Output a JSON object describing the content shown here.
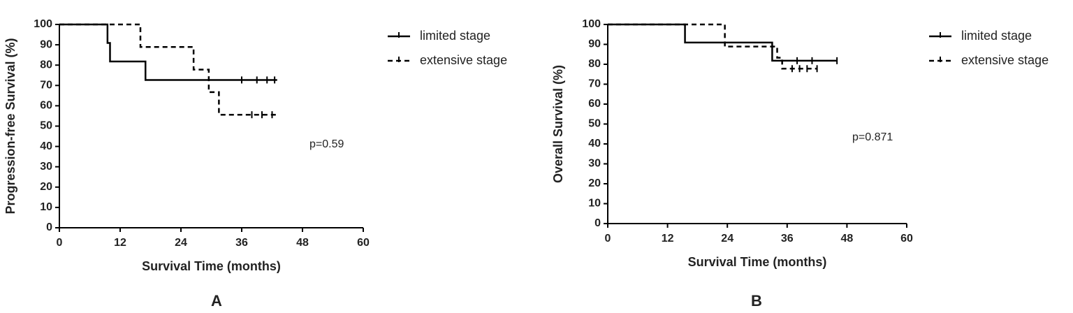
{
  "chart_data": [
    {
      "type": "step",
      "panel": "A",
      "xlabel": "Survival Time (months)",
      "ylabel": "Progression-free Survival (%)",
      "annotation": "p=0.59",
      "xlim": [
        0,
        60
      ],
      "xticks": [
        0,
        12,
        24,
        36,
        48,
        60
      ],
      "ylim": [
        0,
        100
      ],
      "yticks": [
        0,
        10,
        20,
        30,
        40,
        50,
        60,
        70,
        80,
        90,
        100
      ],
      "series": [
        {
          "name": "limited stage",
          "color": "#000000",
          "line_style": "solid",
          "x": [
            0,
            9.5,
            10,
            17,
            43
          ],
          "values": [
            100,
            90.9,
            81.8,
            72.7,
            72.7
          ],
          "censored": [
            36,
            39,
            41,
            42.5
          ]
        },
        {
          "name": "extensive stage",
          "color": "#000000",
          "line_style": "dashed",
          "x": [
            0,
            16,
            26.5,
            29.5,
            31.5,
            43
          ],
          "values": [
            100,
            88.9,
            77.8,
            66.7,
            55.6,
            55.6
          ],
          "censored": [
            38,
            40,
            42
          ]
        }
      ]
    },
    {
      "type": "step",
      "panel": "B",
      "xlabel": "Survival Time (months)",
      "ylabel": "Overall Survival (%)",
      "annotation": "p=0.871",
      "xlim": [
        0,
        60
      ],
      "xticks": [
        0,
        12,
        24,
        36,
        48,
        60
      ],
      "ylim": [
        0,
        100
      ],
      "yticks": [
        0,
        10,
        20,
        30,
        40,
        50,
        60,
        70,
        80,
        90,
        100
      ],
      "series": [
        {
          "name": "limited stage",
          "color": "#000000",
          "line_style": "solid",
          "x": [
            0,
            15.5,
            33,
            46
          ],
          "values": [
            100,
            90.9,
            81.8,
            81.8
          ],
          "censored": [
            38,
            41,
            46
          ]
        },
        {
          "name": "extensive stage",
          "color": "#000000",
          "line_style": "dashed",
          "x": [
            0,
            23.5,
            34,
            35,
            42
          ],
          "values": [
            100,
            88.9,
            83.3,
            77.8,
            77.8
          ],
          "censored": [
            37,
            38.5,
            40,
            42
          ]
        }
      ]
    }
  ]
}
